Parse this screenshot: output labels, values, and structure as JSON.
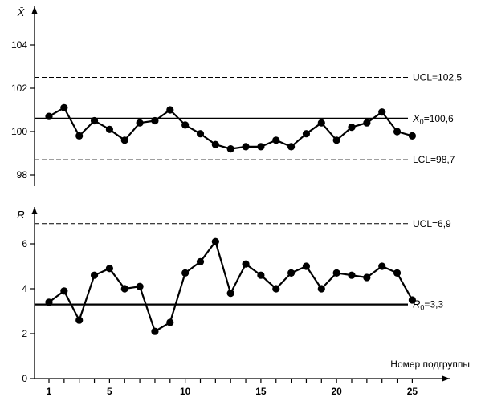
{
  "chart_data": [
    {
      "type": "line",
      "ylabel": "X̄",
      "ylim": [
        97.8,
        105.5
      ],
      "yticks": [
        98,
        100,
        102,
        104
      ],
      "ytick_labels": [
        "98",
        "100",
        "102",
        "104"
      ],
      "x": [
        1,
        2,
        3,
        4,
        5,
        6,
        7,
        8,
        9,
        10,
        11,
        12,
        13,
        14,
        15,
        16,
        17,
        18,
        19,
        20,
        21,
        22,
        23,
        24,
        25
      ],
      "values": [
        100.7,
        101.1,
        99.8,
        100.5,
        100.1,
        99.6,
        100.4,
        100.5,
        101.0,
        100.3,
        99.9,
        99.4,
        99.2,
        99.3,
        99.3,
        99.6,
        99.3,
        99.9,
        100.4,
        99.6,
        100.2,
        100.4,
        100.9,
        100.0,
        99.8
      ],
      "limits": [
        {
          "role": "ucl",
          "value": 102.5,
          "label": "UCL=102,5"
        },
        {
          "role": "center",
          "value": 100.6,
          "label": "X0=100,6",
          "label_main": "X",
          "label_sub": "0",
          "label_rest": "=100,6"
        },
        {
          "role": "lcl",
          "value": 98.7,
          "label": "LCL=98,7"
        }
      ]
    },
    {
      "type": "line",
      "ylabel": "R",
      "ylim": [
        0,
        8
      ],
      "yticks": [
        0,
        2,
        4,
        6
      ],
      "ytick_labels": [
        "0",
        "2",
        "4",
        "6"
      ],
      "x": [
        1,
        2,
        3,
        4,
        5,
        6,
        7,
        8,
        9,
        10,
        11,
        12,
        13,
        14,
        15,
        16,
        17,
        18,
        19,
        20,
        21,
        22,
        23,
        24,
        25
      ],
      "values": [
        3.4,
        3.9,
        2.6,
        4.6,
        4.9,
        4.0,
        4.1,
        2.1,
        2.5,
        4.7,
        5.2,
        6.1,
        3.8,
        5.1,
        4.6,
        4.0,
        4.7,
        5.0,
        4.0,
        4.7,
        4.6,
        4.5,
        5.0,
        4.7,
        3.5
      ],
      "limits": [
        {
          "role": "ucl",
          "value": 6.9,
          "label": "UCL=6,9"
        },
        {
          "role": "center",
          "value": 3.3,
          "label": "R0=3,3",
          "label_main": "R",
          "label_sub": "0",
          "label_rest": "=3,3"
        }
      ]
    }
  ],
  "x_axis": {
    "label": "Номер подгруппы",
    "ticks": [
      1,
      5,
      10,
      15,
      20,
      25
    ],
    "tick_labels": [
      "1",
      "5",
      "10",
      "15",
      "20",
      "25"
    ]
  }
}
